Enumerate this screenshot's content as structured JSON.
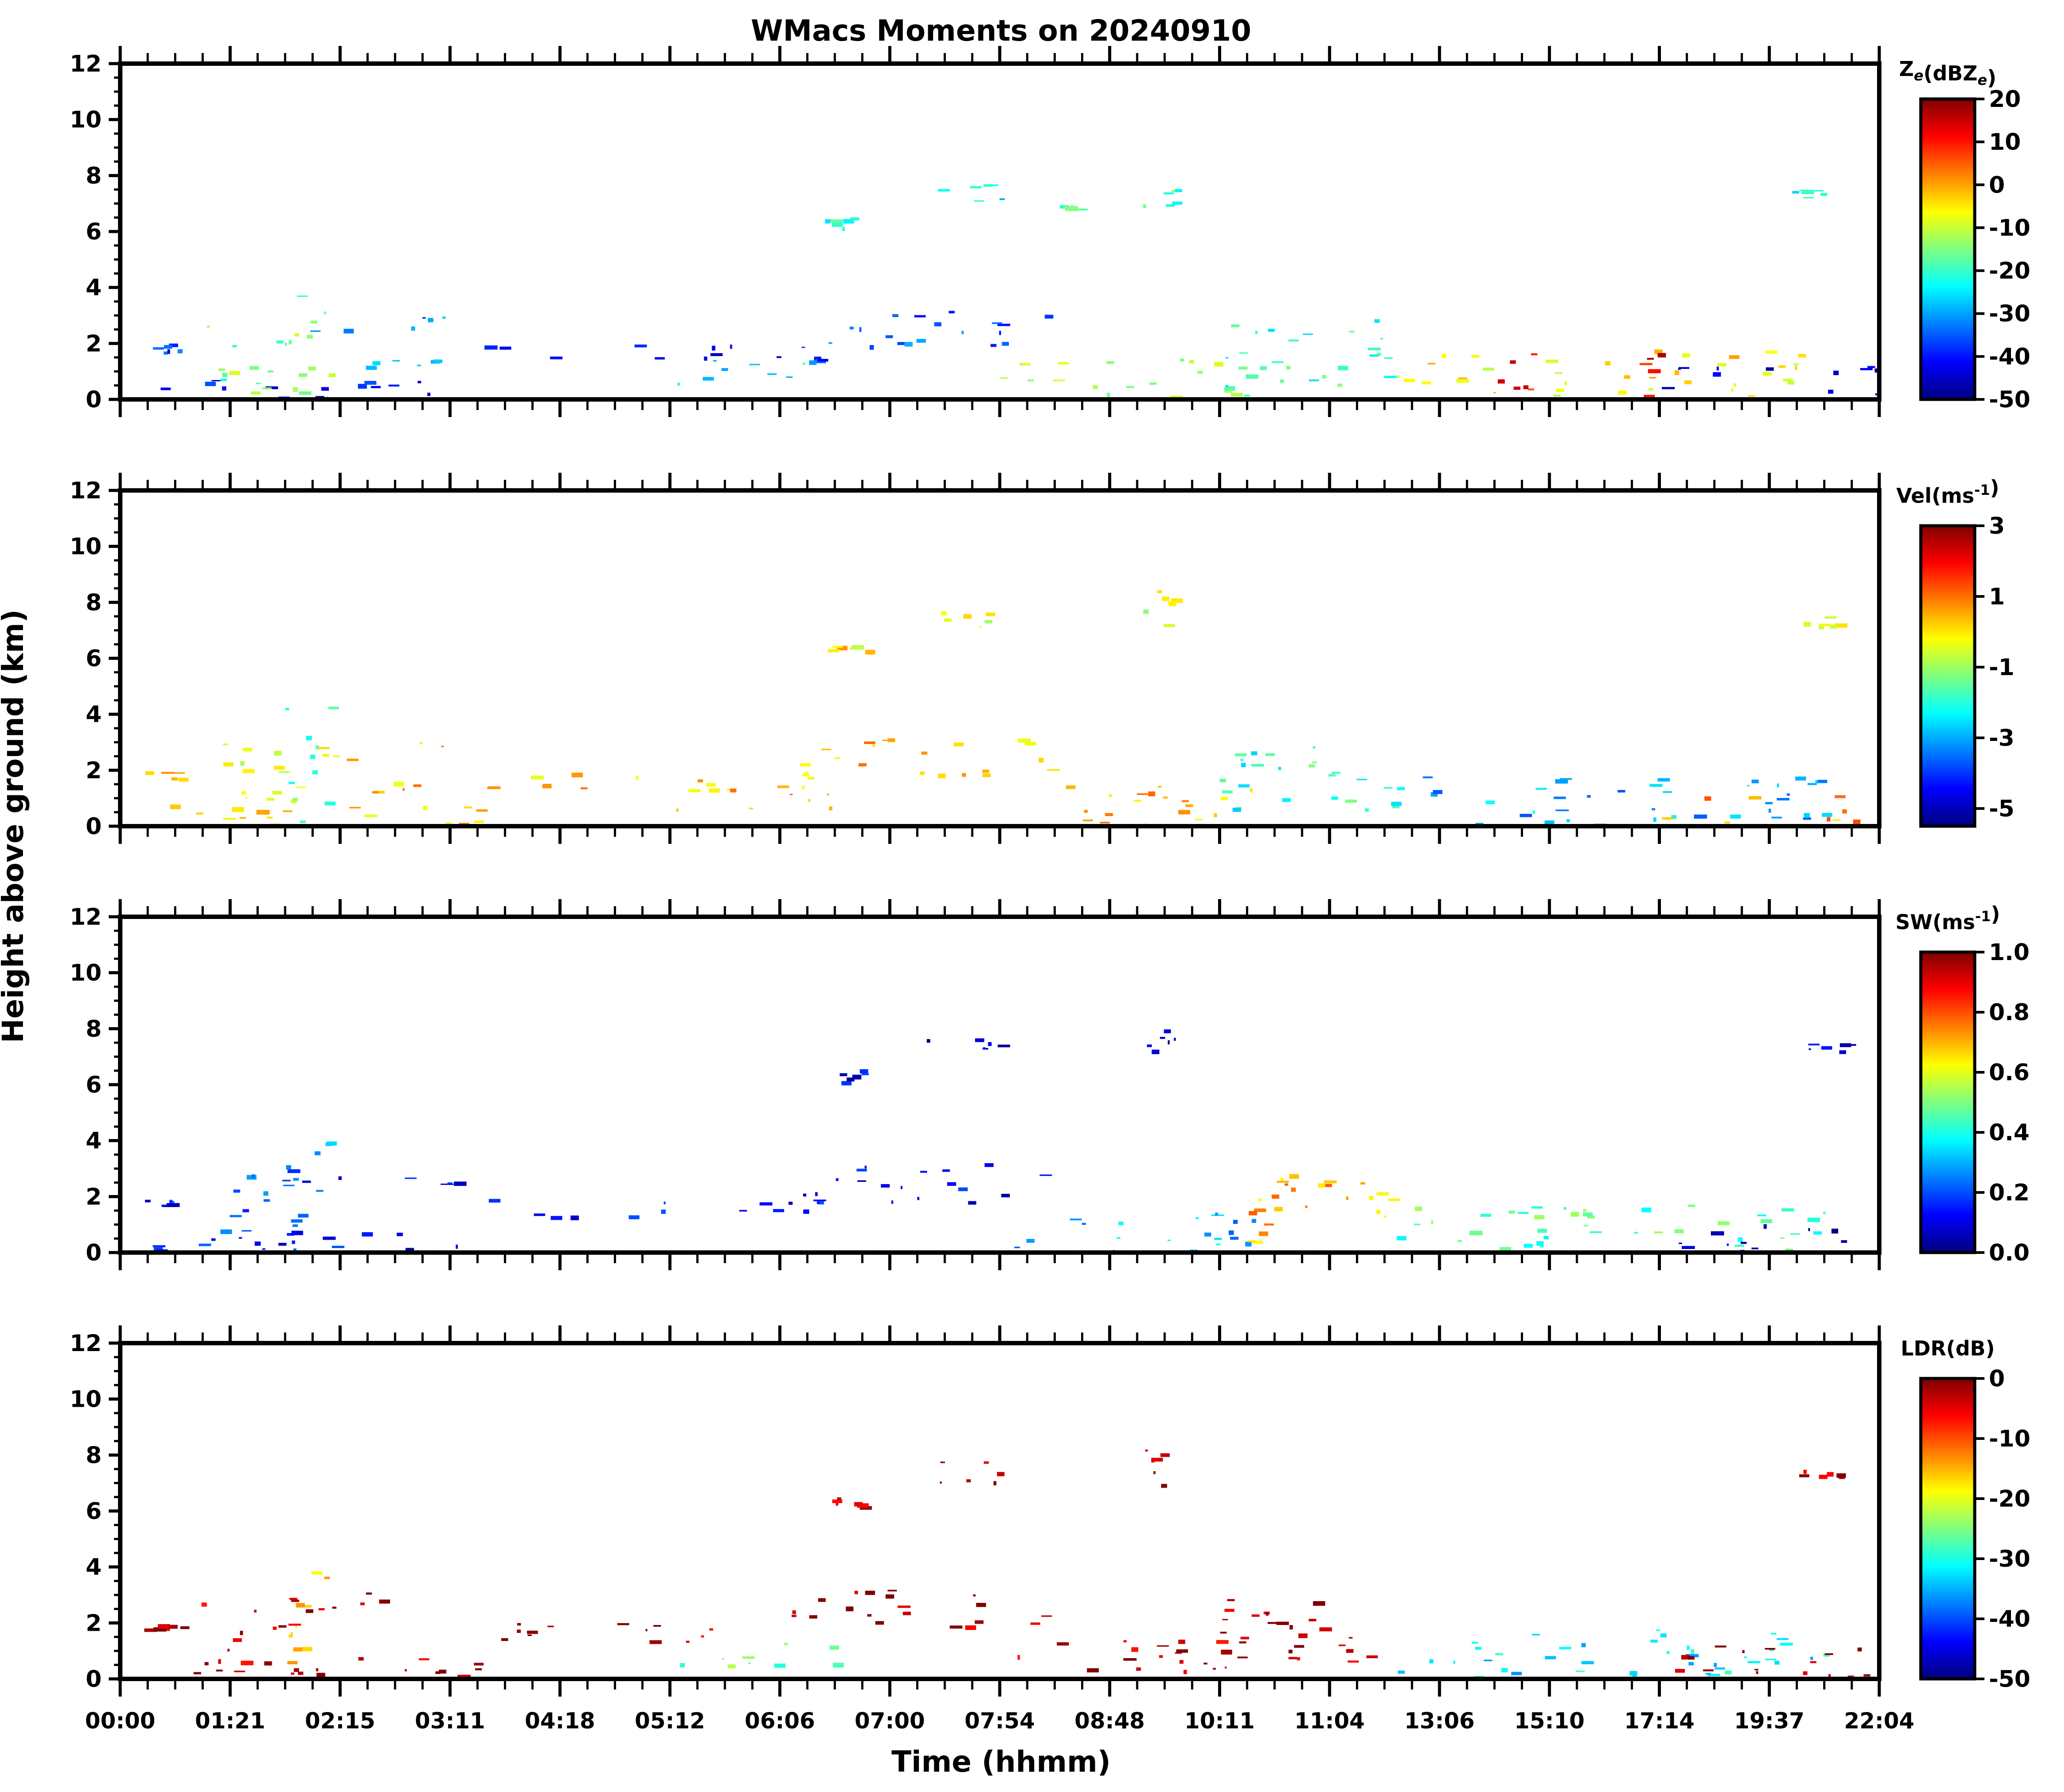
{
  "figure": {
    "title": "WMacs Moments on 20240910",
    "ylabel": "Height above ground (km)",
    "xlabel": "Time (hhmm)"
  },
  "chart_data": {
    "type": "heatmap",
    "title": "WMacs Moments on 20240910",
    "xlabel": "Time (hhmm)",
    "ylabel": "Height above ground (km)",
    "x_tick_labels": [
      "00:00",
      "01:21",
      "02:15",
      "03:11",
      "04:18",
      "05:12",
      "06:06",
      "07:00",
      "07:54",
      "08:48",
      "10:11",
      "11:04",
      "13:06",
      "15:10",
      "17:14",
      "19:37",
      "22:04"
    ],
    "ylim": [
      0,
      12
    ],
    "y_ticks": [
      0,
      2,
      4,
      6,
      8,
      10,
      12
    ],
    "colormap": "jet",
    "colormap_stops": [
      "#00007f",
      "#0000ff",
      "#007fff",
      "#00ffff",
      "#7fff7f",
      "#ffff00",
      "#ff7f00",
      "#ff0000",
      "#7f0000"
    ],
    "panels": [
      {
        "name": "Ze",
        "colorbar_label": "Z_e(dBZ_e)",
        "colorbar_range": [
          -50,
          20
        ],
        "colorbar_ticks": [
          "20",
          "10",
          "0",
          "-10",
          "-20",
          "-30",
          "-40",
          "-50"
        ],
        "features": [
          {
            "x_range": [
              0.0,
              3.3
            ],
            "y_range": [
              0.0,
              0.8
            ],
            "value": -40
          },
          {
            "x_range": [
              0.2,
              0.6
            ],
            "y_range": [
              1.7,
              2.0
            ],
            "value": -38
          },
          {
            "x_range": [
              0.7,
              1.6
            ],
            "y_range": [
              0.2,
              3.0
            ],
            "value": -15
          },
          {
            "x_range": [
              1.5,
              1.9
            ],
            "y_range": [
              0.0,
              4.3
            ],
            "value": -15
          },
          {
            "x_range": [
              1.6,
              3.1
            ],
            "y_range": [
              2.4,
              3.1
            ],
            "value": -33
          },
          {
            "x_range": [
              2.2,
              3.0
            ],
            "y_range": [
              1.2,
              1.6
            ],
            "value": -25
          },
          {
            "x_range": [
              3.3,
              6.4
            ],
            "y_range": [
              1.3,
              2.0
            ],
            "value": -40
          },
          {
            "x_range": [
              5.0,
              6.5
            ],
            "y_range": [
              0.5,
              1.5
            ],
            "value": -25
          },
          {
            "x_range": [
              6.1,
              8.5
            ],
            "y_range": [
              1.8,
              3.2
            ],
            "value": -35
          },
          {
            "x_range": [
              6.4,
              6.8
            ],
            "y_range": [
              6.1,
              6.6
            ],
            "value": -22
          },
          {
            "x_range": [
              7.3,
              8.0
            ],
            "y_range": [
              7.0,
              7.8
            ],
            "value": -25
          },
          {
            "x_range": [
              8.5,
              8.7
            ],
            "y_range": [
              6.8,
              7.0
            ],
            "value": -20
          },
          {
            "x_range": [
              9.3,
              9.6
            ],
            "y_range": [
              6.9,
              8.6
            ],
            "value": -20
          },
          {
            "x_range": [
              8.0,
              10.3
            ],
            "y_range": [
              0.0,
              1.5
            ],
            "value": -12
          },
          {
            "x_range": [
              10.0,
              11.6
            ],
            "y_range": [
              0.3,
              2.9
            ],
            "value": -20
          },
          {
            "x_range": [
              11.6,
              15.5
            ],
            "y_range": [
              0.0,
              1.8
            ],
            "value": -5
          },
          {
            "x_range": [
              12.5,
              13.1
            ],
            "y_range": [
              0.0,
              1.8
            ],
            "value": 10
          },
          {
            "x_range": [
              13.8,
              14.0
            ],
            "y_range": [
              0.0,
              1.8
            ],
            "value": 12
          },
          {
            "x_range": [
              14.0,
              17.0
            ],
            "y_range": [
              0.0,
              1.2
            ],
            "value": -45
          },
          {
            "x_range": [
              15.2,
              15.7
            ],
            "y_range": [
              7.2,
              7.5
            ],
            "value": -22
          }
        ]
      },
      {
        "name": "Vel",
        "colorbar_label": "Vel(ms^-1)",
        "colorbar_range": [
          -5.5,
          3
        ],
        "colorbar_ticks": [
          "3",
          "1",
          "-1",
          "-3",
          "-5"
        ],
        "features": [
          {
            "x_range": [
              0.0,
              3.3
            ],
            "y_range": [
              0.0,
              0.8
            ],
            "value": 0.2
          },
          {
            "x_range": [
              0.2,
              0.6
            ],
            "y_range": [
              1.7,
              2.0
            ],
            "value": 0.3
          },
          {
            "x_range": [
              0.7,
              1.6
            ],
            "y_range": [
              0.2,
              3.0
            ],
            "value": -0.5
          },
          {
            "x_range": [
              1.5,
              1.9
            ],
            "y_range": [
              0.0,
              4.3
            ],
            "value": -1.8
          },
          {
            "x_range": [
              1.6,
              3.1
            ],
            "y_range": [
              2.4,
              3.1
            ],
            "value": 0.2
          },
          {
            "x_range": [
              2.2,
              3.0
            ],
            "y_range": [
              1.2,
              1.6
            ],
            "value": 0.4
          },
          {
            "x_range": [
              3.3,
              6.4
            ],
            "y_range": [
              1.3,
              2.0
            ],
            "value": 0.3
          },
          {
            "x_range": [
              5.0,
              6.5
            ],
            "y_range": [
              0.5,
              1.5
            ],
            "value": 0.5
          },
          {
            "x_range": [
              6.1,
              8.5
            ],
            "y_range": [
              1.8,
              3.2
            ],
            "value": 0.4
          },
          {
            "x_range": [
              6.4,
              6.8
            ],
            "y_range": [
              6.1,
              6.6
            ],
            "value": 0.0
          },
          {
            "x_range": [
              7.3,
              8.0
            ],
            "y_range": [
              7.0,
              7.8
            ],
            "value": -0.5
          },
          {
            "x_range": [
              9.3,
              9.6
            ],
            "y_range": [
              6.9,
              8.6
            ],
            "value": -0.5
          },
          {
            "x_range": [
              8.0,
              10.3
            ],
            "y_range": [
              0.0,
              1.5
            ],
            "value": 0.5
          },
          {
            "x_range": [
              10.0,
              11.6
            ],
            "y_range": [
              0.3,
              2.9
            ],
            "value": -2.0
          },
          {
            "x_range": [
              11.6,
              15.5
            ],
            "y_range": [
              0.0,
              1.8
            ],
            "value": -3.0
          },
          {
            "x_range": [
              14.0,
              17.0
            ],
            "y_range": [
              0.0,
              1.2
            ],
            "value": 0.6
          },
          {
            "x_range": [
              15.2,
              15.7
            ],
            "y_range": [
              7.2,
              7.5
            ],
            "value": -0.3
          }
        ]
      },
      {
        "name": "SW",
        "colorbar_label": "SW(ms^-1)",
        "colorbar_range": [
          0.0,
          1.0
        ],
        "colorbar_ticks": [
          "1.0",
          "0.8",
          "0.6",
          "0.4",
          "0.2",
          "0.0"
        ],
        "features": [
          {
            "x_range": [
              0.0,
              3.3
            ],
            "y_range": [
              0.0,
              0.8
            ],
            "value": 0.12
          },
          {
            "x_range": [
              0.2,
              0.6
            ],
            "y_range": [
              1.7,
              2.0
            ],
            "value": 0.15
          },
          {
            "x_range": [
              0.7,
              1.6
            ],
            "y_range": [
              0.2,
              3.0
            ],
            "value": 0.2
          },
          {
            "x_range": [
              1.5,
              1.9
            ],
            "y_range": [
              0.0,
              4.3
            ],
            "value": 0.25
          },
          {
            "x_range": [
              1.6,
              3.1
            ],
            "y_range": [
              2.4,
              3.1
            ],
            "value": 0.15
          },
          {
            "x_range": [
              3.3,
              6.4
            ],
            "y_range": [
              1.3,
              2.0
            ],
            "value": 0.12
          },
          {
            "x_range": [
              6.1,
              8.5
            ],
            "y_range": [
              1.8,
              3.2
            ],
            "value": 0.12
          },
          {
            "x_range": [
              6.4,
              6.8
            ],
            "y_range": [
              6.1,
              6.6
            ],
            "value": 0.1
          },
          {
            "x_range": [
              7.3,
              8.0
            ],
            "y_range": [
              7.0,
              7.8
            ],
            "value": 0.08
          },
          {
            "x_range": [
              9.3,
              9.6
            ],
            "y_range": [
              6.9,
              8.6
            ],
            "value": 0.08
          },
          {
            "x_range": [
              8.0,
              10.3
            ],
            "y_range": [
              0.0,
              1.5
            ],
            "value": 0.3
          },
          {
            "x_range": [
              10.0,
              11.6
            ],
            "y_range": [
              0.3,
              2.9
            ],
            "value": 0.7
          },
          {
            "x_range": [
              11.6,
              15.5
            ],
            "y_range": [
              0.0,
              1.8
            ],
            "value": 0.45
          },
          {
            "x_range": [
              14.0,
              17.0
            ],
            "y_range": [
              0.0,
              1.2
            ],
            "value": 0.08
          },
          {
            "x_range": [
              15.2,
              15.7
            ],
            "y_range": [
              7.2,
              7.5
            ],
            "value": 0.08
          }
        ]
      },
      {
        "name": "LDR",
        "colorbar_label": "LDR(dB)",
        "colorbar_range": [
          -50,
          0
        ],
        "colorbar_ticks": [
          "0",
          "-10",
          "-20",
          "-30",
          "-40",
          "-50"
        ],
        "features": [
          {
            "x_range": [
              0.0,
              3.3
            ],
            "y_range": [
              0.0,
              0.8
            ],
            "value": -2
          },
          {
            "x_range": [
              0.2,
              0.6
            ],
            "y_range": [
              1.7,
              2.0
            ],
            "value": -2
          },
          {
            "x_range": [
              0.7,
              1.6
            ],
            "y_range": [
              0.2,
              3.0
            ],
            "value": -3
          },
          {
            "x_range": [
              1.5,
              1.9
            ],
            "y_range": [
              0.0,
              4.3
            ],
            "value": -15
          },
          {
            "x_range": [
              1.6,
              3.1
            ],
            "y_range": [
              2.4,
              3.1
            ],
            "value": -2
          },
          {
            "x_range": [
              3.3,
              6.4
            ],
            "y_range": [
              1.3,
              2.0
            ],
            "value": -2
          },
          {
            "x_range": [
              5.0,
              6.5
            ],
            "y_range": [
              0.5,
              1.5
            ],
            "value": -25
          },
          {
            "x_range": [
              6.1,
              8.5
            ],
            "y_range": [
              1.8,
              3.2
            ],
            "value": -2
          },
          {
            "x_range": [
              6.4,
              6.8
            ],
            "y_range": [
              6.1,
              6.6
            ],
            "value": -2
          },
          {
            "x_range": [
              7.3,
              8.0
            ],
            "y_range": [
              7.0,
              7.8
            ],
            "value": -2
          },
          {
            "x_range": [
              9.3,
              9.6
            ],
            "y_range": [
              6.9,
              8.6
            ],
            "value": -2
          },
          {
            "x_range": [
              8.0,
              10.3
            ],
            "y_range": [
              0.0,
              1.5
            ],
            "value": -3
          },
          {
            "x_range": [
              10.0,
              11.6
            ],
            "y_range": [
              0.3,
              2.9
            ],
            "value": -2
          },
          {
            "x_range": [
              11.6,
              15.5
            ],
            "y_range": [
              0.0,
              1.8
            ],
            "value": -32
          },
          {
            "x_range": [
              14.0,
              17.0
            ],
            "y_range": [
              0.0,
              1.2
            ],
            "value": -3
          },
          {
            "x_range": [
              15.2,
              15.7
            ],
            "y_range": [
              7.2,
              7.5
            ],
            "value": -2
          }
        ]
      }
    ]
  }
}
